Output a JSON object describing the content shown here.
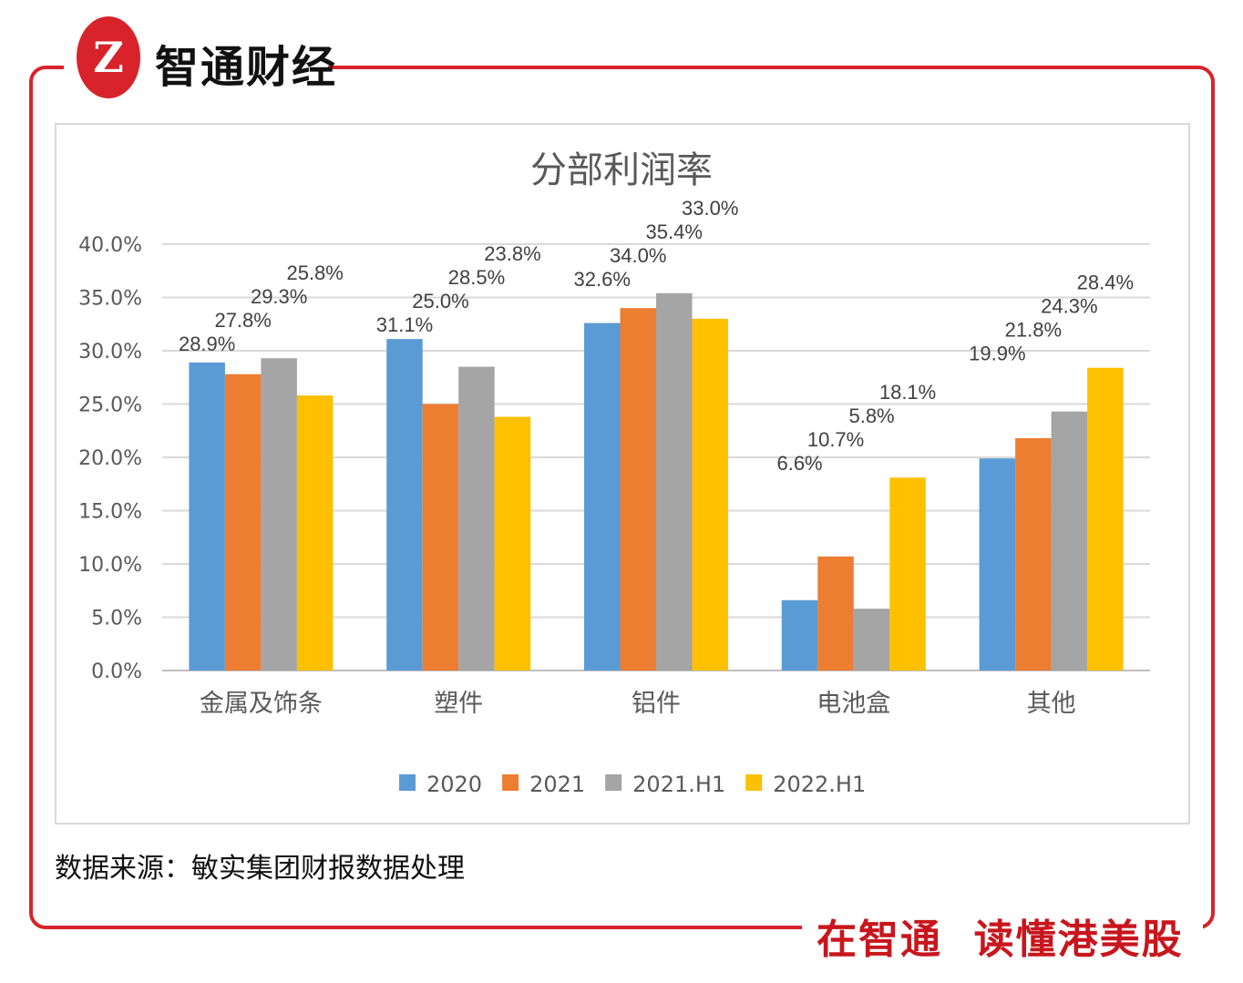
{
  "brand": {
    "logo_mark": "Z",
    "name": "智通财经",
    "slogan": "在智通  读懂港美股",
    "accent": "#d8232a"
  },
  "source": "数据来源：敏实集团财报数据处理",
  "chart_data": {
    "type": "bar",
    "title": "分部利润率",
    "categories": [
      "金属及饰条",
      "塑件",
      "铝件",
      "电池盒",
      "其他"
    ],
    "series": [
      {
        "name": "2020",
        "color": "#5b9bd5",
        "values": [
          28.9,
          31.1,
          32.6,
          6.6,
          19.9
        ]
      },
      {
        "name": "2021",
        "color": "#ed7d31",
        "values": [
          27.8,
          25.0,
          34.0,
          10.7,
          21.8
        ]
      },
      {
        "name": "2021.H1",
        "color": "#a5a5a5",
        "values": [
          29.3,
          28.5,
          35.4,
          5.8,
          24.3
        ]
      },
      {
        "name": "2022.H1",
        "color": "#ffc000",
        "values": [
          25.8,
          23.8,
          33.0,
          18.1,
          28.4
        ]
      }
    ],
    "ylim": [
      0,
      40
    ],
    "yticks": [
      "0.0%",
      "5.0%",
      "10.0%",
      "15.0%",
      "20.0%",
      "25.0%",
      "30.0%",
      "35.0%",
      "40.0%"
    ],
    "grid": true,
    "legend": "bottom",
    "value_format": "percent-1dp"
  }
}
